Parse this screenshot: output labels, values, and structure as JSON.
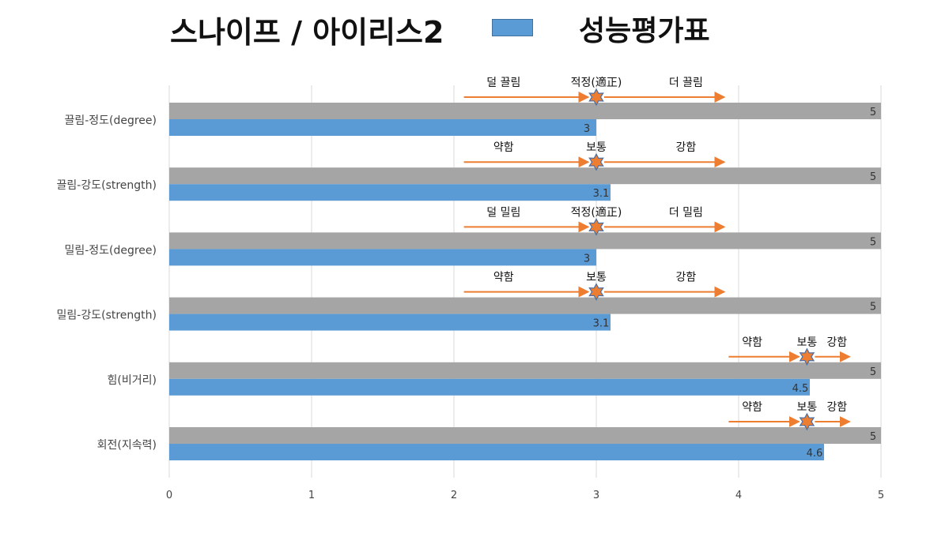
{
  "header": {
    "title": "스나이프 / 아이리스2",
    "legend_label": "성능평가표"
  },
  "colors": {
    "max_bar": "#a5a5a5",
    "score_bar": "#5b9bd5",
    "arrow": "#ed7d31",
    "star_fill": "#ed7d31",
    "star_stroke": "#4a6fa5",
    "grid": "#d9d9d9"
  },
  "chart_data": {
    "type": "bar",
    "orientation": "horizontal",
    "categories": [
      "끌림-정도(degree)",
      "끌림-강도(strength)",
      "밀림-정도(degree)",
      "밀림-강도(strength)",
      "힘(비거리)",
      "회전(지속력)"
    ],
    "series": [
      {
        "name": "",
        "values": [
          5,
          5,
          5,
          5,
          5,
          5
        ]
      },
      {
        "name": "성능평가표",
        "values": [
          3,
          3.1,
          3,
          3.1,
          4.5,
          4.6
        ]
      }
    ],
    "xlim": [
      0,
      5
    ],
    "xticks": [
      "0",
      "1",
      "2",
      "3",
      "4",
      "5"
    ],
    "grid": true,
    "legend": "top",
    "annotations": [
      {
        "left": "덜 끌림",
        "center": "적정(適正)",
        "right": "더 끌림",
        "marker_x": 3,
        "arrow_from": 2.07,
        "arrow_to": 3.9
      },
      {
        "left": "약함",
        "center": "보통",
        "right": "강함",
        "marker_x": 3,
        "arrow_from": 2.07,
        "arrow_to": 3.9
      },
      {
        "left": "덜 밀림",
        "center": "적정(適正)",
        "right": "더 밀림",
        "marker_x": 3,
        "arrow_from": 2.07,
        "arrow_to": 3.9
      },
      {
        "left": "약함",
        "center": "보통",
        "right": "강함",
        "marker_x": 3,
        "arrow_from": 2.07,
        "arrow_to": 3.9
      },
      {
        "left": "약함",
        "center": "보통",
        "right": "강함",
        "marker_x": 4.48,
        "arrow_from": 3.93,
        "arrow_to": 4.78
      },
      {
        "left": "약함",
        "center": "보통",
        "right": "강함",
        "marker_x": 4.48,
        "arrow_from": 3.93,
        "arrow_to": 4.78
      }
    ]
  }
}
